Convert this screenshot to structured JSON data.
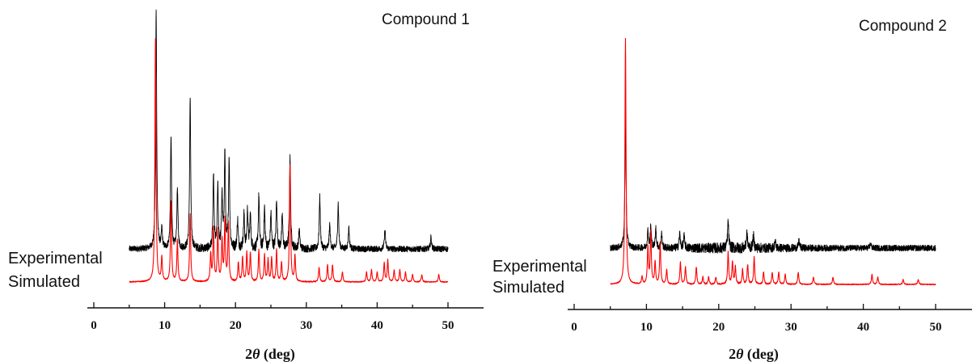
{
  "chart_data": [
    {
      "type": "line",
      "title": "Compound 1",
      "xlabel_prefix": "2",
      "xlabel_symbol": "θ",
      "xlabel_suffix": " (deg)",
      "xlim": [
        0,
        55
      ],
      "xticks": [
        0,
        10,
        20,
        30,
        40,
        50
      ],
      "tick_labels": [
        "0",
        "10",
        "20",
        "30",
        "40",
        "50"
      ],
      "series": [
        {
          "name": "Experimental",
          "color": "#000000",
          "x_range": [
            5,
            50
          ],
          "baseline": 0.06,
          "peaks": [
            [
              8.8,
              1.0
            ],
            [
              9.6,
              0.08
            ],
            [
              10.9,
              0.47
            ],
            [
              11.8,
              0.25
            ],
            [
              13.6,
              0.63
            ],
            [
              16.9,
              0.3
            ],
            [
              17.5,
              0.26
            ],
            [
              18.1,
              0.22
            ],
            [
              18.5,
              0.4
            ],
            [
              19.1,
              0.38
            ],
            [
              20.3,
              0.12
            ],
            [
              21.2,
              0.14
            ],
            [
              21.7,
              0.16
            ],
            [
              22.1,
              0.14
            ],
            [
              23.3,
              0.22
            ],
            [
              24.1,
              0.17
            ],
            [
              25.0,
              0.15
            ],
            [
              25.8,
              0.21
            ],
            [
              26.6,
              0.14
            ],
            [
              27.7,
              0.39
            ],
            [
              29.0,
              0.08
            ],
            [
              31.9,
              0.22
            ],
            [
              33.3,
              0.1
            ],
            [
              34.5,
              0.19
            ],
            [
              36.0,
              0.09
            ],
            [
              41.1,
              0.08
            ],
            [
              47.6,
              0.05
            ]
          ]
        },
        {
          "name": "Simulated",
          "color": "#ff0000",
          "x_range": [
            5,
            50
          ],
          "baseline": 0.0,
          "peaks": [
            [
              8.7,
              1.0
            ],
            [
              9.6,
              0.1
            ],
            [
              10.9,
              0.33
            ],
            [
              11.8,
              0.17
            ],
            [
              13.6,
              0.28
            ],
            [
              16.5,
              0.11
            ],
            [
              16.9,
              0.22
            ],
            [
              17.5,
              0.21
            ],
            [
              18.1,
              0.17
            ],
            [
              18.5,
              0.25
            ],
            [
              19.0,
              0.24
            ],
            [
              20.4,
              0.08
            ],
            [
              21.0,
              0.1
            ],
            [
              21.6,
              0.12
            ],
            [
              22.1,
              0.12
            ],
            [
              23.3,
              0.13
            ],
            [
              24.1,
              0.11
            ],
            [
              24.6,
              0.09
            ],
            [
              25.1,
              0.1
            ],
            [
              25.8,
              0.13
            ],
            [
              26.5,
              0.08
            ],
            [
              27.7,
              0.48
            ],
            [
              28.4,
              0.11
            ],
            [
              31.8,
              0.06
            ],
            [
              33.0,
              0.07
            ],
            [
              33.7,
              0.07
            ],
            [
              35.1,
              0.04
            ],
            [
              38.5,
              0.04
            ],
            [
              39.2,
              0.05
            ],
            [
              40.0,
              0.04
            ],
            [
              41.0,
              0.08
            ],
            [
              41.5,
              0.09
            ],
            [
              42.4,
              0.05
            ],
            [
              43.2,
              0.05
            ],
            [
              44.0,
              0.04
            ],
            [
              45.0,
              0.03
            ],
            [
              46.3,
              0.03
            ],
            [
              48.7,
              0.03
            ]
          ]
        }
      ]
    },
    {
      "type": "line",
      "title": "Compound 2",
      "xlabel_prefix": "2",
      "xlabel_symbol": "θ",
      "xlabel_suffix": " (deg)",
      "xlim": [
        0,
        55
      ],
      "xticks": [
        0,
        10,
        20,
        30,
        40,
        50
      ],
      "tick_labels": [
        "0",
        "10",
        "20",
        "30",
        "40",
        "50"
      ],
      "series": [
        {
          "name": "Experimental",
          "color": "#000000",
          "x_range": [
            5,
            50
          ],
          "baseline": 0.08,
          "peaks": [
            [
              7.1,
              0.55
            ],
            [
              10.2,
              0.07
            ],
            [
              10.6,
              0.09
            ],
            [
              11.3,
              0.08
            ],
            [
              12.1,
              0.06
            ],
            [
              14.6,
              0.06
            ],
            [
              15.2,
              0.05
            ],
            [
              21.3,
              0.11
            ],
            [
              23.9,
              0.06
            ],
            [
              24.8,
              0.05
            ],
            [
              27.8,
              0.03
            ],
            [
              31.1,
              0.03
            ],
            [
              41.0,
              0.02
            ]
          ]
        },
        {
          "name": "Simulated",
          "color": "#ff0000",
          "x_range": [
            5,
            50
          ],
          "baseline": 0.0,
          "peaks": [
            [
              7.1,
              1.0
            ],
            [
              9.4,
              0.03
            ],
            [
              10.2,
              0.15
            ],
            [
              10.6,
              0.21
            ],
            [
              11.2,
              0.09
            ],
            [
              11.9,
              0.17
            ],
            [
              12.8,
              0.06
            ],
            [
              14.7,
              0.09
            ],
            [
              15.4,
              0.07
            ],
            [
              16.9,
              0.07
            ],
            [
              17.8,
              0.03
            ],
            [
              18.6,
              0.03
            ],
            [
              19.6,
              0.03
            ],
            [
              21.3,
              0.13
            ],
            [
              21.9,
              0.09
            ],
            [
              22.3,
              0.07
            ],
            [
              23.3,
              0.06
            ],
            [
              24.0,
              0.08
            ],
            [
              24.9,
              0.11
            ],
            [
              26.2,
              0.05
            ],
            [
              27.4,
              0.05
            ],
            [
              28.3,
              0.05
            ],
            [
              29.2,
              0.04
            ],
            [
              31.0,
              0.05
            ],
            [
              33.1,
              0.03
            ],
            [
              35.8,
              0.03
            ],
            [
              41.2,
              0.04
            ],
            [
              42.0,
              0.03
            ],
            [
              45.5,
              0.02
            ],
            [
              47.6,
              0.02
            ]
          ]
        }
      ]
    }
  ]
}
